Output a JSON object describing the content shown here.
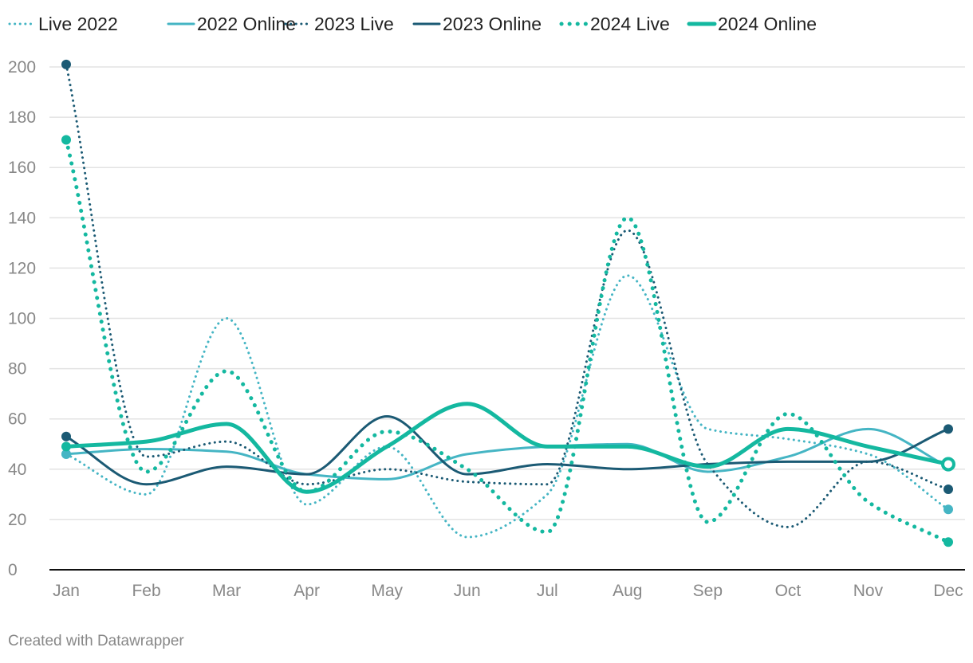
{
  "credit": "Created with Datawrapper",
  "chart_data": {
    "type": "line",
    "categories": [
      "Jan",
      "Feb",
      "Mar",
      "Apr",
      "May",
      "Jun",
      "Jul",
      "Aug",
      "Sep",
      "Oct",
      "Nov",
      "Dec"
    ],
    "ylim": [
      0,
      200
    ],
    "yticks": [
      0,
      20,
      40,
      60,
      80,
      100,
      120,
      140,
      160,
      180,
      200
    ],
    "grid": true,
    "legend_position": "top-left",
    "series": [
      {
        "name": "Live 2022",
        "color": "#45b5c4",
        "style": "dotted-thin",
        "values": [
          46,
          30,
          100,
          26,
          49,
          13,
          30,
          117,
          56,
          52,
          46,
          24
        ]
      },
      {
        "name": "2022 Online",
        "color": "#45b5c4",
        "style": "solid-thin",
        "values": [
          46,
          48,
          47,
          38,
          36,
          46,
          49,
          50,
          39,
          45,
          56,
          41
        ]
      },
      {
        "name": "2023 Live",
        "color": "#1b5a74",
        "style": "dotted-thin",
        "values": [
          201,
          45,
          51,
          34,
          40,
          35,
          34,
          135,
          42,
          17,
          43,
          32
        ]
      },
      {
        "name": "2023 Online",
        "color": "#1b5a74",
        "style": "solid-thin",
        "values": [
          53,
          34,
          41,
          38,
          61,
          38,
          42,
          40,
          42,
          43,
          43,
          56
        ]
      },
      {
        "name": "2024 Live",
        "color": "#14b8a0",
        "style": "dotted-thick",
        "values": [
          171,
          39,
          79,
          31,
          55,
          40,
          15,
          140,
          19,
          62,
          27,
          11
        ]
      },
      {
        "name": "2024 Online",
        "color": "#14b8a0",
        "style": "solid-thick",
        "values": [
          49,
          51,
          58,
          31,
          49,
          66,
          49,
          49,
          41,
          56,
          49,
          42
        ]
      }
    ]
  }
}
